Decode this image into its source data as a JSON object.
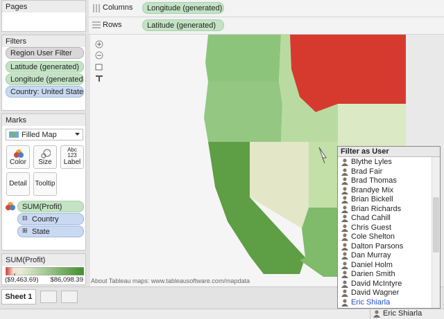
{
  "pages_panel": {
    "title": "Pages"
  },
  "filters_panel": {
    "title": "Filters",
    "items": [
      "Region User Filter",
      "Latitude (generated)",
      "Longitude (generated)",
      "Country: United States .."
    ]
  },
  "marks_panel": {
    "title": "Marks",
    "mark_type": "Filled Map",
    "buttons": [
      "Color",
      "Size",
      "Label",
      "Detail",
      "Tooltip"
    ],
    "label_icon": [
      "Abc",
      "123"
    ],
    "fields": [
      "SUM(Profit)",
      "Country",
      "State"
    ]
  },
  "legend": {
    "title": "SUM(Profit)",
    "min_label": "($9,463.69)",
    "max_label": "$86,098.39"
  },
  "shelves": {
    "columns": {
      "label": "Columns",
      "field": "Longitude (generated)"
    },
    "rows": {
      "label": "Rows",
      "field": "Latitude (generated)"
    }
  },
  "map": {
    "attribution": "About Tableau maps: www.tableausoftware.com/mapdata"
  },
  "user_filter": {
    "title": "Filter as User",
    "users": [
      "Blythe Lyles",
      "Brad Fair",
      "Brad Thomas",
      "Brandye Mix",
      "Brian Bickell",
      "Brian Richards",
      "Chad Cahill",
      "Chris Guest",
      "Cole Shelton",
      "Dalton Parsons",
      "Dan Murray",
      "Daniel Holm",
      "Darien Smith",
      "David McIntyre",
      "David Wagner",
      "Eric Shiarla"
    ]
  },
  "tabs": {
    "sheet": "Sheet 1"
  },
  "status_bar": {
    "user": "Eric Shiarla"
  }
}
